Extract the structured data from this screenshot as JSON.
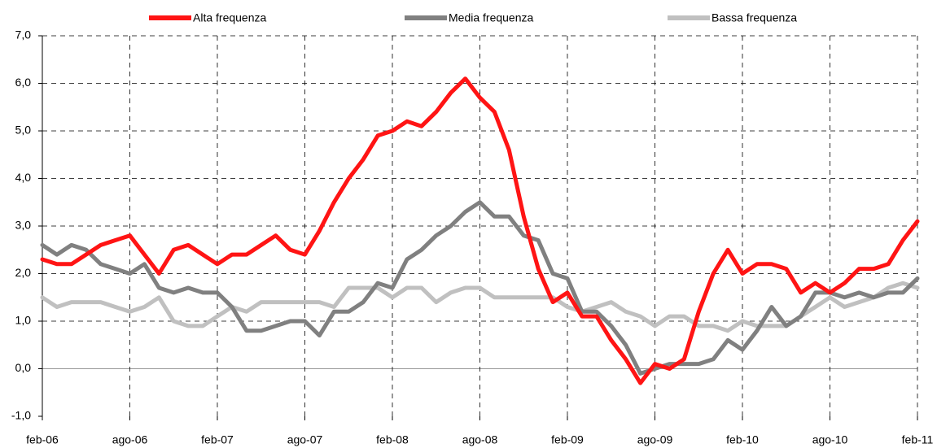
{
  "chart_data": {
    "type": "line",
    "categories": [
      "feb-06",
      null,
      null,
      null,
      null,
      null,
      "ago-06",
      null,
      null,
      null,
      null,
      null,
      "feb-07",
      null,
      null,
      null,
      null,
      null,
      "ago-07",
      null,
      null,
      null,
      null,
      null,
      "feb-08",
      null,
      null,
      null,
      null,
      null,
      "ago-08",
      null,
      null,
      null,
      null,
      null,
      "feb-09",
      null,
      null,
      null,
      null,
      null,
      "ago-09",
      null,
      null,
      null,
      null,
      null,
      "feb-10",
      null,
      null,
      null,
      null,
      null,
      "ago-10",
      null,
      null,
      null,
      null,
      null,
      "feb-11"
    ],
    "series": [
      {
        "name": "Alta frequenza",
        "color": "#ff1414",
        "values": [
          2.3,
          2.2,
          2.2,
          2.4,
          2.6,
          2.7,
          2.8,
          2.4,
          2.0,
          2.5,
          2.6,
          2.4,
          2.2,
          2.4,
          2.4,
          2.6,
          2.8,
          2.5,
          2.4,
          2.9,
          3.5,
          4.0,
          4.4,
          4.9,
          5.0,
          5.2,
          5.1,
          5.4,
          5.8,
          6.1,
          5.7,
          5.4,
          4.6,
          3.2,
          2.1,
          1.4,
          1.6,
          1.1,
          1.1,
          0.6,
          0.2,
          -0.3,
          0.1,
          0.0,
          0.2,
          1.2,
          2.0,
          2.5,
          2.0,
          2.2,
          2.2,
          2.1,
          1.6,
          1.8,
          1.6,
          1.8,
          2.1,
          2.1,
          2.2,
          2.7,
          3.1
        ]
      },
      {
        "name": "Media frequenza",
        "color": "#808080",
        "values": [
          2.6,
          2.4,
          2.6,
          2.5,
          2.2,
          2.1,
          2.0,
          2.2,
          1.7,
          1.6,
          1.7,
          1.6,
          1.6,
          1.3,
          0.8,
          0.8,
          0.9,
          1.0,
          1.0,
          0.7,
          1.2,
          1.2,
          1.4,
          1.8,
          1.7,
          2.3,
          2.5,
          2.8,
          3.0,
          3.3,
          3.5,
          3.2,
          3.2,
          2.8,
          2.7,
          2.0,
          1.9,
          1.2,
          1.2,
          0.9,
          0.5,
          -0.1,
          0.0,
          0.1,
          0.1,
          0.1,
          0.2,
          0.6,
          0.4,
          0.8,
          1.3,
          0.9,
          1.1,
          1.6,
          1.6,
          1.5,
          1.6,
          1.5,
          1.6,
          1.6,
          1.9
        ]
      },
      {
        "name": "Bassa frequenza",
        "color": "#c0c0c0",
        "values": [
          1.5,
          1.3,
          1.4,
          1.4,
          1.4,
          1.3,
          1.2,
          1.3,
          1.5,
          1.0,
          0.9,
          0.9,
          1.1,
          1.3,
          1.2,
          1.4,
          1.4,
          1.4,
          1.4,
          1.4,
          1.3,
          1.7,
          1.7,
          1.7,
          1.5,
          1.7,
          1.7,
          1.4,
          1.6,
          1.7,
          1.7,
          1.5,
          1.5,
          1.5,
          1.5,
          1.5,
          1.3,
          1.2,
          1.3,
          1.4,
          1.2,
          1.1,
          0.9,
          1.1,
          1.1,
          0.9,
          0.9,
          0.8,
          1.0,
          0.9,
          0.9,
          0.9,
          1.1,
          1.3,
          1.5,
          1.3,
          1.4,
          1.5,
          1.7,
          1.8,
          1.7
        ]
      }
    ],
    "ylim": [
      -1,
      7
    ],
    "yticks": [
      {
        "value": -1,
        "label": "-1,0"
      },
      {
        "value": 0,
        "label": "0,0"
      },
      {
        "value": 1,
        "label": "1,0"
      },
      {
        "value": 2,
        "label": "2,0"
      },
      {
        "value": 3,
        "label": "3,0"
      },
      {
        "value": 4,
        "label": "4,0"
      },
      {
        "value": 5,
        "label": "5,0"
      },
      {
        "value": 6,
        "label": "6,0"
      },
      {
        "value": 7,
        "label": "7,0"
      }
    ],
    "grid": true,
    "legend": "top"
  }
}
